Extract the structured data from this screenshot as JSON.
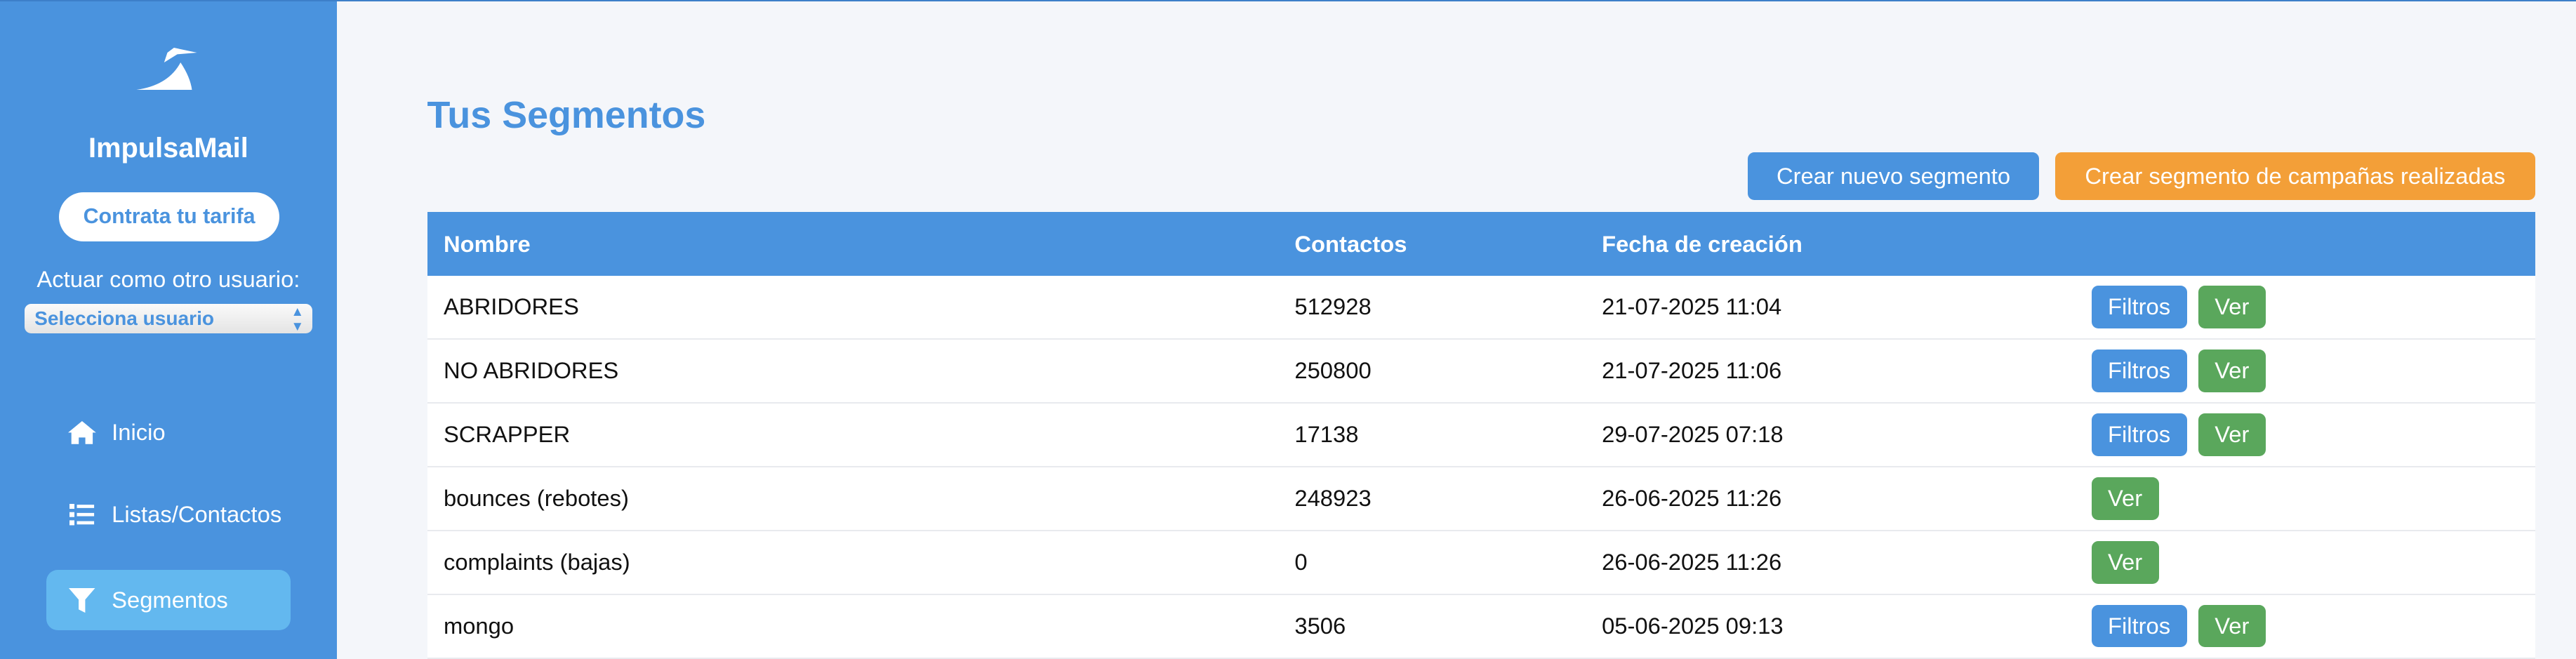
{
  "sidebar": {
    "brand": "ImpulsaMail",
    "plan_button": "Contrata tu tarifa",
    "act_as_label": "Actuar como otro usuario:",
    "user_select": "Selecciona usuario",
    "items": [
      {
        "label": "Inicio",
        "icon": "home-icon"
      },
      {
        "label": "Listas/Contactos",
        "icon": "list-icon"
      },
      {
        "label": "Segmentos",
        "icon": "filter-icon",
        "active": true
      }
    ]
  },
  "main": {
    "title": "Tus Segmentos",
    "new_segment_button": "Crear nuevo segmento",
    "campaign_segment_button": "Crear segmento de campañas realizadas",
    "columns": [
      "Nombre",
      "Contactos",
      "Fecha de creación",
      ""
    ],
    "rows": [
      {
        "name": "ABRIDORES",
        "contacts": "512928",
        "date": "21-07-2025 11:04",
        "filtros": "Filtros",
        "ver": "Ver"
      },
      {
        "name": "NO ABRIDORES",
        "contacts": "250800",
        "date": "21-07-2025 11:06",
        "filtros": "Filtros",
        "ver": "Ver"
      },
      {
        "name": "SCRAPPER",
        "contacts": "17138",
        "date": "29-07-2025 07:18",
        "filtros": "Filtros",
        "ver": "Ver"
      },
      {
        "name": "bounces (rebotes)",
        "contacts": "248923",
        "date": "26-06-2025 11:26",
        "ver": "Ver"
      },
      {
        "name": "complaints (bajas)",
        "contacts": "0",
        "date": "26-06-2025 11:26",
        "ver": "Ver"
      },
      {
        "name": "mongo",
        "contacts": "3506",
        "date": "05-06-2025 09:13",
        "filtros": "Filtros",
        "ver": "Ver"
      }
    ]
  },
  "colors": {
    "sidebar": "#4a93de",
    "active_item": "#63b8ef",
    "primary": "#4a93de",
    "orange": "#f39f38",
    "green": "#5aa75c",
    "background": "#f4f6fa"
  }
}
